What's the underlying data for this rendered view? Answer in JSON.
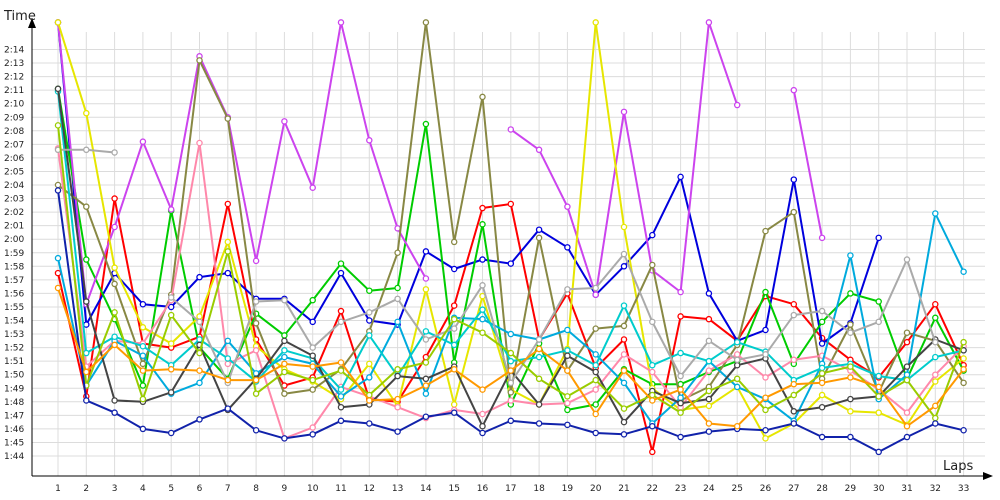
{
  "chart_data": {
    "type": "line",
    "title": "",
    "ylabel": "Time",
    "xlabel": "Laps",
    "x": [
      1,
      2,
      3,
      4,
      5,
      6,
      7,
      8,
      9,
      10,
      11,
      12,
      13,
      14,
      15,
      16,
      17,
      18,
      19,
      20,
      21,
      22,
      23,
      24,
      25,
      26,
      27,
      28,
      29,
      30,
      31,
      32,
      33
    ],
    "x_tick_labels": [
      "1",
      "2",
      "3",
      "4",
      "5",
      "6",
      "7",
      "8",
      "9",
      "10",
      "11",
      "12",
      "13",
      "14",
      "15",
      "16",
      "17",
      "18",
      "19",
      "20",
      "21",
      "22",
      "23",
      "24",
      "25",
      "26",
      "27",
      "28",
      "29",
      "30",
      "31",
      "32",
      "33"
    ],
    "y_tick_labels": [
      "1:44",
      "1:45",
      "1:46",
      "1:47",
      "1:48",
      "1:49",
      "1:50",
      "1:51",
      "1:52",
      "1:53",
      "1:54",
      "1:55",
      "1:56",
      "1:57",
      "1:58",
      "1:59",
      "2:00",
      "2:01",
      "2:02",
      "2:03",
      "2:04",
      "2:05",
      "2:06",
      "2:07",
      "2:08",
      "2:09",
      "2:10",
      "2:11",
      "2:12",
      "2:13",
      "2:14"
    ],
    "y_tick_values": [
      104,
      105,
      106,
      107,
      108,
      109,
      110,
      111,
      112,
      113,
      114,
      115,
      116,
      117,
      118,
      119,
      120,
      121,
      122,
      123,
      124,
      125,
      126,
      127,
      128,
      129,
      130,
      131,
      132,
      133,
      134
    ],
    "y_unit": "seconds",
    "xlim": [
      0.9,
      33.2
    ],
    "ylim": [
      103.2,
      135.4
    ],
    "grid": true,
    "series": [
      {
        "color": "#ff0000",
        "values": [
          117.5,
          108.4,
          123,
          112.3,
          112,
          112.8,
          122.6,
          112.6,
          109.2,
          109.8,
          114.7,
          108.2,
          108,
          111.3,
          115.1,
          122.3,
          122.6,
          112.6,
          116,
          110.5,
          112.6,
          104.3,
          114.3,
          114.1,
          112.5,
          115.8,
          115.2,
          112.7,
          111.1,
          109.8,
          112.4,
          115.2,
          110.7
        ]
      },
      {
        "color": "#0000dd",
        "values": [
          136,
          113.7,
          117.5,
          115.2,
          115,
          117.2,
          117.5,
          115.6,
          115.6,
          113.9,
          117.5,
          114,
          113.7,
          119.1,
          117.8,
          118.5,
          118.2,
          120.7,
          119.4,
          115.9,
          118,
          120.3,
          124.6,
          116,
          112.5,
          113.3,
          124.4,
          112.3,
          113.8,
          120.1,
          null,
          null,
          null
        ]
      },
      {
        "color": "#00cc00",
        "values": [
          131.1,
          118.5,
          114.1,
          109.2,
          122.1,
          112,
          109.7,
          114.5,
          112.9,
          115.5,
          118.2,
          116.2,
          116.4,
          128.5,
          110.9,
          121.1,
          107.8,
          112.3,
          107.4,
          107.8,
          110.4,
          109.3,
          109.3,
          110.2,
          111,
          116.1,
          110.8,
          113.9,
          116,
          115.4,
          109.7,
          114.2,
          110.3
        ]
      },
      {
        "color": "#cc44ee",
        "values": [
          136,
          115.2,
          120.9,
          127.2,
          122.2,
          133.5,
          129,
          118.4,
          128.7,
          123.8,
          136,
          127.3,
          120.8,
          117.1,
          null,
          null,
          128.1,
          126.6,
          122.4,
          115.9,
          129.4,
          117.7,
          116.1,
          136,
          129.9,
          null,
          131,
          120.1,
          null,
          null,
          null,
          null,
          null
        ]
      },
      {
        "color": "#e6e600",
        "values": [
          136,
          129.3,
          117.9,
          113.5,
          112.3,
          114.3,
          119.8,
          112.1,
          110.4,
          109.5,
          108.2,
          110.8,
          107.7,
          116.3,
          107.8,
          115.8,
          108.9,
          107.8,
          111.9,
          136,
          120.9,
          109,
          107.4,
          107.7,
          109.1,
          105.3,
          106.4,
          108.5,
          107.3,
          107.2,
          106.3,
          109.5,
          111.2
        ]
      },
      {
        "color": "#888844",
        "values": [
          124,
          122.4,
          116.7,
          110.8,
          115.9,
          133.2,
          128.9,
          113.8,
          108.6,
          108.9,
          110.4,
          113.2,
          119,
          136,
          119.8,
          130.5,
          108.7,
          120.1,
          110.3,
          113.4,
          113.6,
          118.1,
          108.1,
          109.1,
          112.2,
          120.6,
          122,
          109.7,
          113.7,
          108.7,
          113.1,
          112.5,
          109.4
        ]
      },
      {
        "color": "#ff88aa",
        "values": [
          126.7,
          110.6,
          112.5,
          112.3,
          115.5,
          127.1,
          110.8,
          111.8,
          105.3,
          106.1,
          109.1,
          108.4,
          107.6,
          106.8,
          107.4,
          107.1,
          108.1,
          107.8,
          107.9,
          108.9,
          111.5,
          110.2,
          107.6,
          110.3,
          111.5,
          109.8,
          111.1,
          111.4,
          110.3,
          108.9,
          107.2,
          110,
          112.1
        ]
      },
      {
        "color": "#00aadd",
        "values": [
          118.6,
          109.2,
          112.5,
          111.4,
          108.6,
          109.4,
          112.5,
          110.1,
          111.3,
          110.8,
          108.4,
          109.8,
          113.9,
          108.6,
          114.2,
          114.1,
          113,
          112.6,
          113.3,
          111.5,
          109.4,
          106.4,
          108.3,
          111,
          109.1,
          108.2,
          106.6,
          110.8,
          118.8,
          108.2,
          110,
          121.9,
          117.6
        ]
      },
      {
        "color": "#00cccc",
        "values": [
          130.9,
          111.6,
          112.8,
          112.1,
          110.7,
          112.6,
          111.2,
          109.5,
          111.8,
          111.2,
          108.9,
          112.9,
          109.9,
          113.2,
          112.2,
          114.8,
          111,
          111.3,
          111.8,
          110.7,
          115.1,
          110.7,
          111.6,
          111,
          112.4,
          111.7,
          109.6,
          110.5,
          110.8,
          109.9,
          109.6,
          111.3,
          111.8
        ]
      },
      {
        "color": "#444444",
        "values": [
          131.1,
          115.4,
          108.1,
          108,
          108.7,
          112.2,
          107.4,
          109.7,
          112.5,
          111.4,
          107.6,
          107.8,
          109.9,
          109.7,
          110.6,
          106.2,
          110.3,
          107.8,
          111.4,
          110.2,
          106.5,
          108.8,
          107.9,
          108.2,
          110.7,
          111.2,
          107.3,
          107.6,
          108.2,
          108.4,
          110.6,
          112.6,
          111.8
        ]
      },
      {
        "color": "#aaaaaa",
        "values": [
          126.6,
          126.6,
          126.4,
          null,
          115.7,
          113.9,
          109.4,
          115.4,
          115.5,
          112,
          113.9,
          114.6,
          115.6,
          112.6,
          113.4,
          116.6,
          109.4,
          112.6,
          116.3,
          116.4,
          118.9,
          113.9,
          109.9,
          112.5,
          111.1,
          111.5,
          114.4,
          114.7,
          113.1,
          113.9,
          118.5,
          112.4,
          null
        ]
      },
      {
        "color": "#99cc00",
        "values": [
          128.4,
          109.2,
          114.6,
          108.2,
          114.4,
          111.6,
          119.1,
          108.6,
          110.2,
          109.6,
          110.3,
          108.5,
          110.4,
          110.9,
          114.1,
          113.1,
          111.6,
          109.7,
          108.4,
          109.6,
          107.5,
          108.5,
          107.2,
          108.8,
          109.7,
          107.4,
          108.5,
          110.1,
          110.6,
          108.4,
          109.6,
          106.8,
          112.4
        ]
      },
      {
        "color": "#1122aa",
        "values": [
          123.6,
          108.1,
          107.2,
          106,
          105.7,
          106.7,
          107.5,
          105.9,
          105.3,
          105.6,
          106.6,
          106.4,
          105.8,
          106.9,
          107.2,
          105.7,
          106.6,
          106.4,
          106.3,
          105.7,
          105.6,
          106.2,
          105.4,
          105.8,
          106,
          105.9,
          106.4,
          105.4,
          105.4,
          104.3,
          105.4,
          106.4,
          105.9
        ]
      },
      {
        "color": "#ff9900",
        "values": [
          116.4,
          110.2,
          112.2,
          110.3,
          110.4,
          110.3,
          109.6,
          109.6,
          110.8,
          110.6,
          110.9,
          108.1,
          108.2,
          109.2,
          110.4,
          108.9,
          110.3,
          111.9,
          110.3,
          107.1,
          110.3,
          108.1,
          108.9,
          106.4,
          106.2,
          108.3,
          109.3,
          109.4,
          109.8,
          109.1,
          106.2,
          107.7,
          110.4
        ]
      }
    ]
  }
}
